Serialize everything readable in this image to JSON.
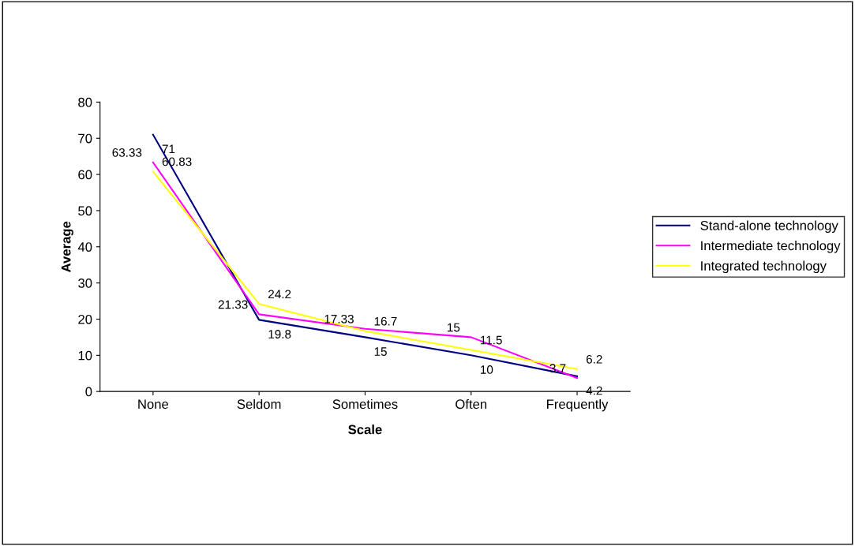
{
  "chart_data": {
    "type": "line",
    "xlabel": "Scale",
    "ylabel": "Average",
    "categories": [
      "None",
      "Seldom",
      "Sometimes",
      "Often",
      "Frequently"
    ],
    "series": [
      {
        "name": "Stand-alone technology",
        "color": "#000080",
        "values": [
          71,
          19.8,
          15,
          10,
          4.2
        ]
      },
      {
        "name": "Intermediate technology",
        "color": "#ff00ff",
        "values": [
          63.33,
          21.33,
          17.33,
          15,
          3.7
        ]
      },
      {
        "name": "Integrated technology",
        "color": "#ffff00",
        "values": [
          60.83,
          24.2,
          16.7,
          11.5,
          6.2
        ]
      }
    ],
    "ylim": [
      0,
      80
    ],
    "yticks": [
      0,
      10,
      20,
      30,
      40,
      50,
      60,
      70,
      80
    ],
    "data_labels": true,
    "grid": false,
    "legend": "right",
    "marker": "none",
    "line_style": "solid"
  }
}
